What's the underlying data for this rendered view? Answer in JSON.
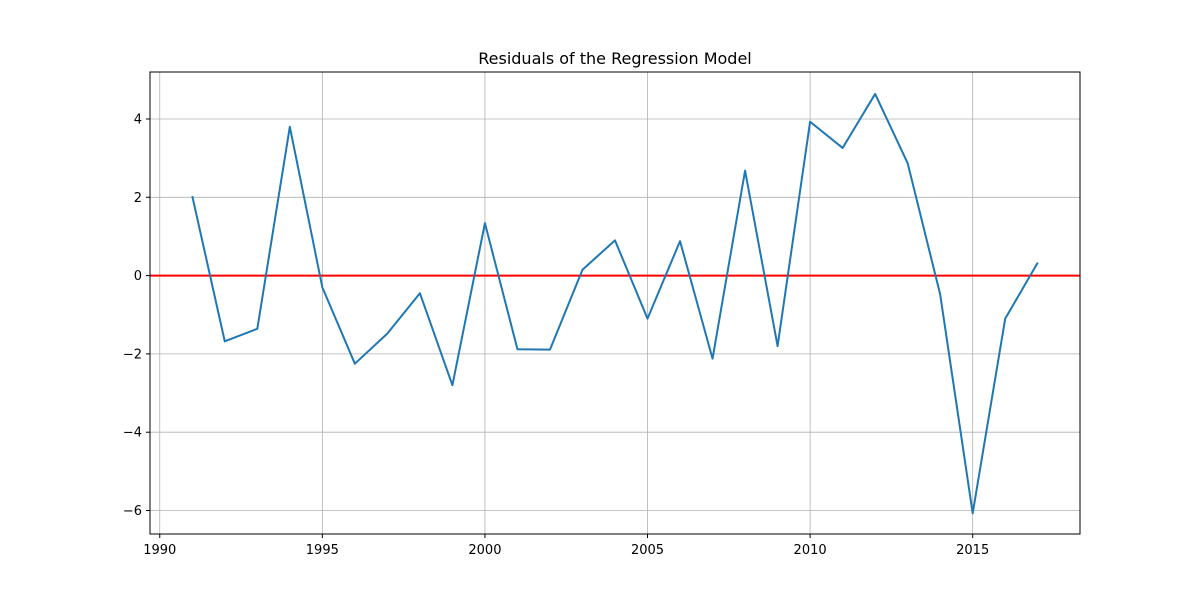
{
  "chart_data": {
    "type": "line",
    "title": "Residuals of the Regression Model",
    "xlabel": "",
    "ylabel": "",
    "xlim": [
      1989.7,
      2018.3
    ],
    "ylim": [
      -6.6,
      5.2
    ],
    "x_ticks": [
      1990,
      1995,
      2000,
      2005,
      2010,
      2015
    ],
    "y_ticks": [
      -6,
      -4,
      -2,
      0,
      2,
      4
    ],
    "y_tick_labels": [
      "−6",
      "−4",
      "−2",
      "0",
      "2",
      "4"
    ],
    "grid": true,
    "series": [
      {
        "color": "#1f77b4",
        "x": [
          1991,
          1992,
          1993,
          1994,
          1995,
          1996,
          1997,
          1998,
          1999,
          2000,
          2001,
          2002,
          2003,
          2004,
          2005,
          2006,
          2007,
          2008,
          2009,
          2010,
          2011,
          2012,
          2013,
          2014,
          2015,
          2016,
          2017
        ],
        "y": [
          2.03,
          -1.68,
          -1.36,
          3.8,
          -0.3,
          -2.25,
          -1.48,
          -0.45,
          -2.8,
          1.34,
          -1.88,
          -1.89,
          0.15,
          0.9,
          -1.1,
          0.88,
          -2.12,
          2.68,
          -1.8,
          3.93,
          3.26,
          4.64,
          2.87,
          -0.48,
          -6.07,
          -1.1,
          0.33
        ]
      }
    ],
    "reference_line": {
      "y": 0,
      "color": "#ff0000"
    }
  }
}
